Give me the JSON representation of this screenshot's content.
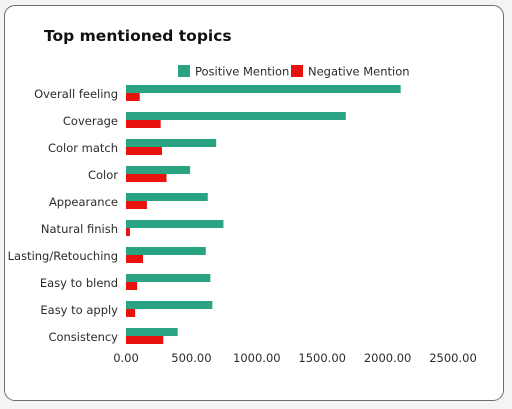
{
  "chart_data": {
    "type": "bar",
    "orientation": "horizontal",
    "title": "Top mentioned topics",
    "categories": [
      "Overall feeling",
      "Coverage",
      "Color match",
      "Color",
      "Appearance",
      "Natural finish",
      "Lasting/Retouching",
      "Easy to blend",
      "Easy to apply",
      "Consistency"
    ],
    "series": [
      {
        "name": "Positive Mention",
        "color": "#2aa382",
        "values": [
          2100,
          1680,
          690,
          490,
          625,
          745,
          610,
          645,
          660,
          395
        ]
      },
      {
        "name": "Negative Mention",
        "color": "#e8130f",
        "values": [
          105,
          265,
          275,
          310,
          160,
          30,
          130,
          85,
          70,
          285
        ]
      }
    ],
    "xlim": [
      0,
      2500
    ],
    "xticks": [
      "0.00",
      "500.00",
      "1000.00",
      "1500.00",
      "2000.00",
      "2500.00"
    ],
    "xtick_values": [
      0,
      500,
      1000,
      1500,
      2000,
      2500
    ],
    "legend_position": "top",
    "grid": false
  }
}
